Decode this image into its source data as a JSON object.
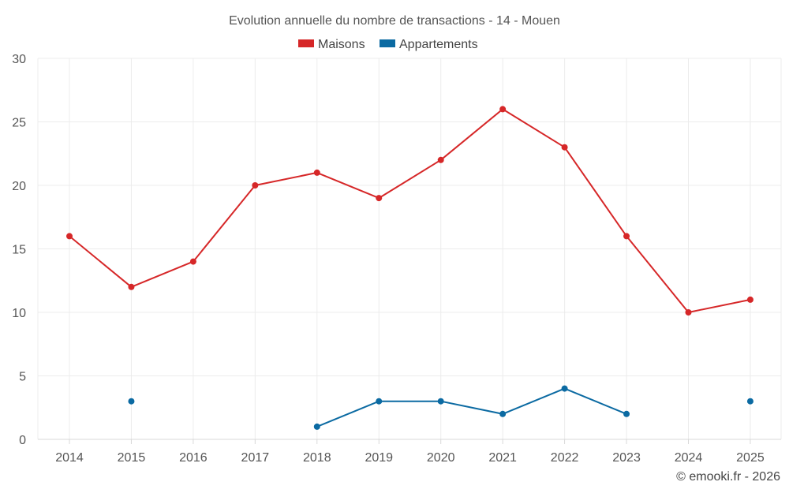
{
  "chart_data": {
    "type": "line",
    "title": "Evolution annuelle du nombre de transactions - 14 - Mouen",
    "categories": [
      "2014",
      "2015",
      "2016",
      "2017",
      "2018",
      "2019",
      "2020",
      "2021",
      "2022",
      "2023",
      "2024",
      "2025"
    ],
    "series": [
      {
        "name": "Maisons",
        "color": "#d62728",
        "values": [
          16,
          12,
          14,
          20,
          21,
          19,
          22,
          26,
          23,
          16,
          10,
          11
        ]
      },
      {
        "name": "Appartements",
        "color": "#0b6aa2",
        "values": [
          null,
          3,
          null,
          null,
          1,
          3,
          3,
          2,
          4,
          2,
          null,
          3
        ]
      }
    ],
    "ylim": [
      0,
      30
    ],
    "yticks": [
      0,
      5,
      10,
      15,
      20,
      25,
      30
    ],
    "grid": true,
    "legend": "top-center",
    "credit": "© emooki.fr - 2026"
  }
}
